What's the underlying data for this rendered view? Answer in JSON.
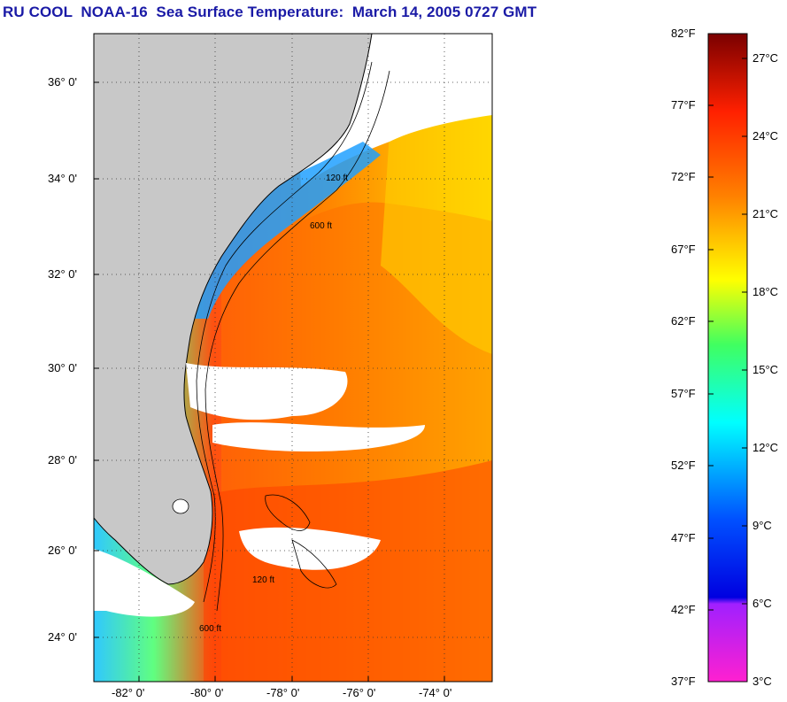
{
  "title": "RU COOL  NOAA-16  Sea Surface Temperature:  March 14, 2005 0727 GMT",
  "map": {
    "lon_range": [
      -83.0,
      -73.0
    ],
    "lat_range": [
      23.0,
      37.0
    ],
    "lon_ticks": [
      "-82° 0'",
      "-80° 0'",
      "-78° 0'",
      "-76° 0'",
      "-74° 0'"
    ],
    "lat_ticks": [
      "36° 0'",
      "34° 0'",
      "32° 0'",
      "30° 0'",
      "28° 0'",
      "26° 0'",
      "24° 0'"
    ],
    "grid": "dotted",
    "land_color": "#c8c8c8",
    "cloud_color": "#ffffff",
    "contour_labels": [
      "120 ft",
      "600 ft"
    ]
  },
  "colorbar": {
    "fahrenheit": [
      "82°F",
      "77°F",
      "72°F",
      "67°F",
      "62°F",
      "57°F",
      "52°F",
      "47°F",
      "42°F",
      "37°F"
    ],
    "celsius": [
      "27°C",
      "24°C",
      "21°C",
      "18°C",
      "15°C",
      "12°C",
      "9°C",
      "6°C",
      "3°C"
    ],
    "colors": {
      "hot": "#7a0000",
      "red": "#ff2000",
      "orange": "#ff8000",
      "yellow": "#ffff00",
      "green": "#40ff60",
      "cyan": "#00ffff",
      "blue": "#0050ff",
      "deep_blue": "#0000e0",
      "purple": "#a020ff",
      "magenta": "#ff20d0"
    }
  }
}
